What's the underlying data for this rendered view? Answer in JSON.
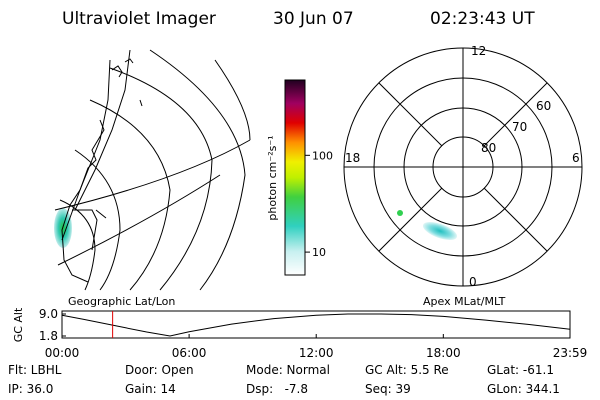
{
  "header": {
    "title": "Ultraviolet Imager",
    "date": "30 Jun 07",
    "time": "02:23:43 UT"
  },
  "map_label": "Geographic Lat/Lon",
  "polar": {
    "label": "Apex MLat/MLT",
    "mlt_labels": [
      "12",
      "18",
      "6",
      "0"
    ],
    "lat_labels": [
      "60",
      "70",
      "80"
    ]
  },
  "colorbar": {
    "label": "photon cm⁻²s⁻¹",
    "log": true,
    "range": [
      5.8,
      600
    ],
    "ticks": [
      10,
      100
    ]
  },
  "altitude_plot": {
    "ylabel": "GC Alt",
    "ylim": [
      1.8,
      9.0
    ],
    "yticks": [
      {
        "value": 9.0,
        "label": "9.0"
      },
      1.8
    ],
    "xlim": [
      0,
      23.98
    ],
    "xticks": [
      {
        "value": 0,
        "label": "00:00"
      },
      {
        "value": 6,
        "label": "06:00"
      },
      {
        "value": 12,
        "label": "12:00"
      },
      {
        "value": 18,
        "label": "18:00"
      },
      {
        "value": 23.98,
        "label": "23:59"
      }
    ],
    "x": [
      0,
      1,
      2,
      3,
      4,
      5.1,
      6,
      8,
      10,
      12,
      13.5,
      15,
      16.5,
      18,
      20,
      22,
      23.98
    ],
    "values": [
      8.6,
      7.3,
      5.9,
      4.5,
      3.1,
      1.8,
      3.2,
      5.7,
      7.5,
      8.6,
      9.0,
      9.0,
      8.8,
      8.2,
      7.0,
      5.6,
      4.0
    ],
    "marker_hour": 2.39,
    "color": "#000000",
    "marker_color": "#e00000"
  },
  "info": {
    "rows": [
      [
        "Flt: LBHL",
        "Door: Open",
        "Mode: Normal",
        "GC Alt: 5.5 Re",
        "GLat: -61.1"
      ],
      [
        "IP: 36.0",
        "Gain: 14",
        "Dsp:   -7.8",
        "Seq: 39",
        "GLon: 344.1"
      ]
    ]
  }
}
